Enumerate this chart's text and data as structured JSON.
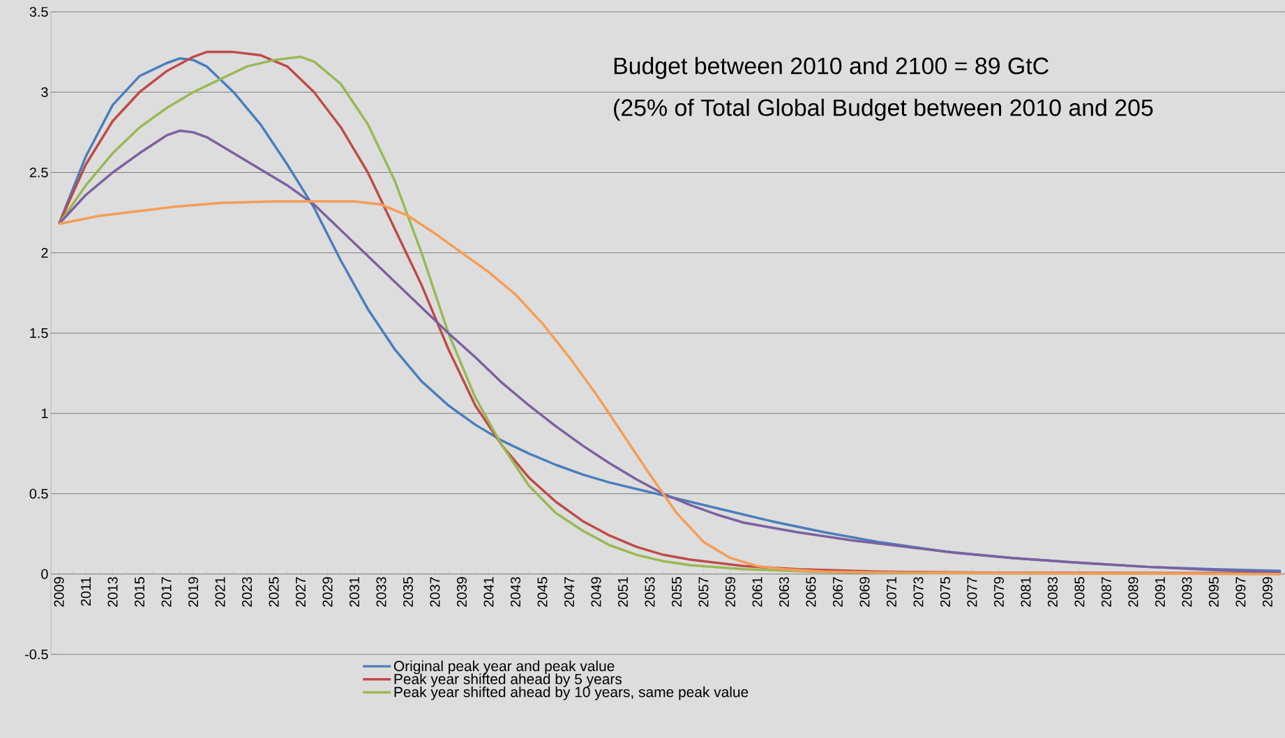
{
  "chart_data": {
    "type": "line",
    "xlim": [
      2008.4,
      2100.3
    ],
    "ylim": [
      -0.5,
      3.5
    ],
    "xticks": [
      2009,
      2011,
      2013,
      2015,
      2017,
      2019,
      2021,
      2023,
      2025,
      2027,
      2029,
      2031,
      2033,
      2035,
      2037,
      2039,
      2041,
      2043,
      2045,
      2047,
      2049,
      2051,
      2053,
      2055,
      2057,
      2059,
      2061,
      2063,
      2065,
      2067,
      2069,
      2071,
      2073,
      2075,
      2077,
      2079,
      2081,
      2083,
      2085,
      2087,
      2089,
      2091,
      2093,
      2095,
      2097,
      2099
    ],
    "yticks": [
      -0.5,
      0,
      0.5,
      1,
      1.5,
      2,
      2.5,
      3,
      3.5
    ],
    "grid": "y",
    "legend": "bottom",
    "marker": "none",
    "line_style": "solid",
    "annotations": [
      "Budget between 2010 and 2100 = 89 GtC",
      "(25% of Total Global Budget between 2010 and 205"
    ],
    "series": [
      {
        "name": "Original peak year and peak value",
        "color": "#4a7ebb",
        "x": [
          2009,
          2011,
          2013,
          2015,
          2017,
          2018,
          2019,
          2020,
          2022,
          2024,
          2026,
          2028,
          2030,
          2032,
          2034,
          2036,
          2038,
          2040,
          2042,
          2044,
          2046,
          2048,
          2050,
          2054,
          2058,
          2062,
          2066,
          2070,
          2075,
          2080,
          2085,
          2090,
          2095,
          2100
        ],
        "values": [
          2.18,
          2.6,
          2.92,
          3.1,
          3.18,
          3.21,
          3.2,
          3.16,
          3.0,
          2.8,
          2.55,
          2.28,
          1.95,
          1.65,
          1.4,
          1.2,
          1.05,
          0.93,
          0.83,
          0.75,
          0.68,
          0.62,
          0.57,
          0.49,
          0.41,
          0.33,
          0.26,
          0.2,
          0.14,
          0.1,
          0.07,
          0.045,
          0.03,
          0.02
        ]
      },
      {
        "name": "Peak year shifted ahead by 5 years",
        "color": "#be4b48",
        "x": [
          2009,
          2011,
          2013,
          2015,
          2017,
          2019,
          2020,
          2022,
          2024,
          2026,
          2028,
          2030,
          2032,
          2034,
          2036,
          2038,
          2040,
          2042,
          2044,
          2046,
          2048,
          2050,
          2052,
          2054,
          2056,
          2060,
          2064,
          2070,
          2080,
          2090,
          2100
        ],
        "values": [
          2.18,
          2.55,
          2.82,
          3.0,
          3.13,
          3.22,
          3.25,
          3.25,
          3.23,
          3.16,
          3.0,
          2.78,
          2.5,
          2.15,
          1.8,
          1.4,
          1.05,
          0.8,
          0.6,
          0.45,
          0.33,
          0.24,
          0.17,
          0.12,
          0.09,
          0.05,
          0.03,
          0.015,
          0.008,
          null,
          0.005
        ]
      },
      {
        "name": "Peak year shifted ahead by 10 years, same peak value",
        "color": "#98b954",
        "x": [
          2009,
          2011,
          2013,
          2015,
          2017,
          2019,
          2021,
          2023,
          2025,
          2027,
          2028,
          2030,
          2032,
          2034,
          2036,
          2038,
          2040,
          2042,
          2044,
          2046,
          2048,
          2050,
          2052,
          2054,
          2056,
          2060,
          2065,
          2070,
          2080,
          2100
        ],
        "values": [
          2.18,
          2.42,
          2.62,
          2.78,
          2.9,
          3.0,
          3.08,
          3.16,
          3.2,
          3.22,
          3.19,
          3.05,
          2.8,
          2.45,
          2.0,
          1.5,
          1.1,
          0.8,
          0.55,
          0.38,
          0.27,
          0.18,
          0.12,
          0.08,
          0.055,
          0.03,
          0.015,
          0.008,
          0.005,
          0
        ]
      },
      {
        "color": "#7d60a0",
        "x": [
          2009,
          2011,
          2013,
          2015,
          2017,
          2018,
          2019,
          2020,
          2022,
          2024,
          2026,
          2028,
          2030,
          2032,
          2034,
          2036,
          2038,
          2040,
          2042,
          2044,
          2046,
          2048,
          2050,
          2052,
          2054,
          2056,
          2058,
          2060,
          2064,
          2068,
          2072,
          2076,
          2080,
          2085,
          2090,
          2095,
          2100
        ],
        "values": [
          2.18,
          2.36,
          2.5,
          2.62,
          2.73,
          2.76,
          2.75,
          2.72,
          2.62,
          2.52,
          2.42,
          2.3,
          2.14,
          1.98,
          1.82,
          1.66,
          1.5,
          1.35,
          1.19,
          1.05,
          0.92,
          0.8,
          0.69,
          0.59,
          0.5,
          0.43,
          0.37,
          0.32,
          0.26,
          0.21,
          0.17,
          0.13,
          0.1,
          0.07,
          0.045,
          0.025,
          0.01
        ]
      },
      {
        "color": "#f59d56",
        "x": [
          2009,
          2012,
          2015,
          2018,
          2021,
          2025,
          2028,
          2031,
          2033,
          2035,
          2037,
          2039,
          2041,
          2043,
          2045,
          2047,
          2049,
          2051,
          2053,
          2055,
          2057,
          2059,
          2061,
          2063,
          2066,
          2070,
          2080,
          2100
        ],
        "values": [
          2.18,
          2.23,
          2.26,
          2.29,
          2.31,
          2.32,
          2.32,
          2.32,
          2.3,
          2.23,
          2.12,
          2.0,
          1.88,
          1.74,
          1.56,
          1.35,
          1.12,
          0.87,
          0.62,
          0.38,
          0.2,
          0.1,
          0.05,
          0.03,
          0.015,
          0.01,
          0.005,
          0
        ]
      }
    ]
  }
}
